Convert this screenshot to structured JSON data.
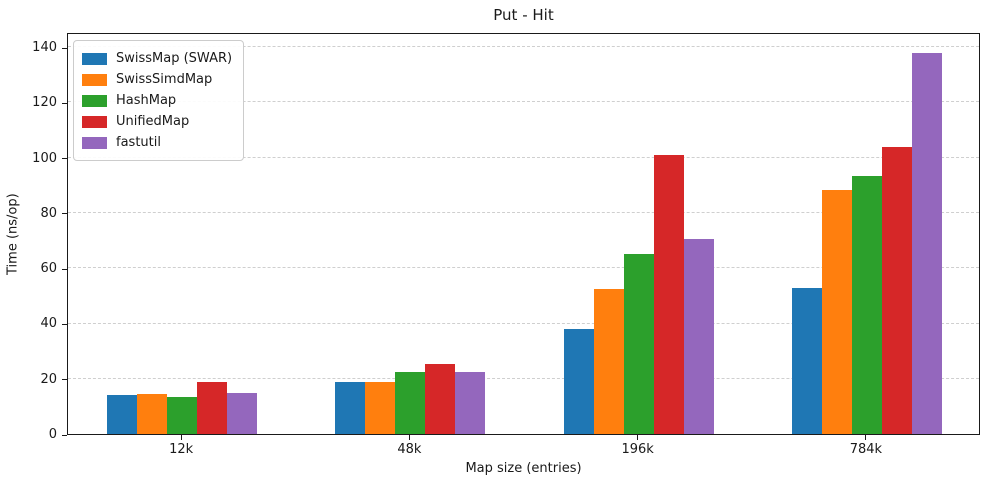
{
  "chart_data": {
    "type": "bar",
    "title": "Put - Hit",
    "xlabel": "Map size (entries)",
    "ylabel": "Time (ns/op)",
    "categories": [
      "12k",
      "48k",
      "196k",
      "784k"
    ],
    "series": [
      {
        "name": "SwissMap (SWAR)",
        "color": "#1f77b4",
        "values": [
          14,
          18.7,
          38,
          53
        ]
      },
      {
        "name": "SwissSimdMap",
        "color": "#ff7f0e",
        "values": [
          14.5,
          18.7,
          52.5,
          88.5
        ]
      },
      {
        "name": "HashMap",
        "color": "#2ca02c",
        "values": [
          13.5,
          22.3,
          65,
          93.5
        ]
      },
      {
        "name": "UnifiedMap",
        "color": "#d62728",
        "values": [
          18.7,
          25.4,
          101,
          104
        ]
      },
      {
        "name": "fastutil",
        "color": "#9467bd",
        "values": [
          15,
          22.3,
          70.5,
          138
        ]
      }
    ],
    "yticks": [
      0,
      20,
      40,
      60,
      80,
      100,
      120,
      140
    ],
    "ylim": [
      0,
      145.5
    ],
    "grid": "horizontal-dashed",
    "legend_position": "upper-left",
    "colors": {
      "grid": "#cfcfcf",
      "axis": "#1a1a1a",
      "legend_border": "#cccccc",
      "background": "#ffffff"
    }
  }
}
